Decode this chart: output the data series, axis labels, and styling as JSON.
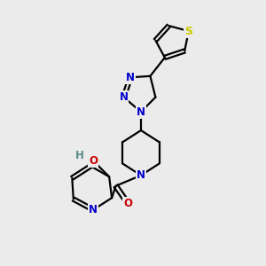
{
  "background_color": "#ebebeb",
  "bond_color": "#000000",
  "bond_width": 1.6,
  "atom_colors": {
    "N": "#0000cc",
    "O": "#cc0000",
    "S": "#cccc00",
    "C": "#000000",
    "H": "#5a8a8a"
  },
  "font_size_atoms": 8.5,
  "xlim": [
    0,
    10
  ],
  "ylim": [
    0,
    10
  ]
}
